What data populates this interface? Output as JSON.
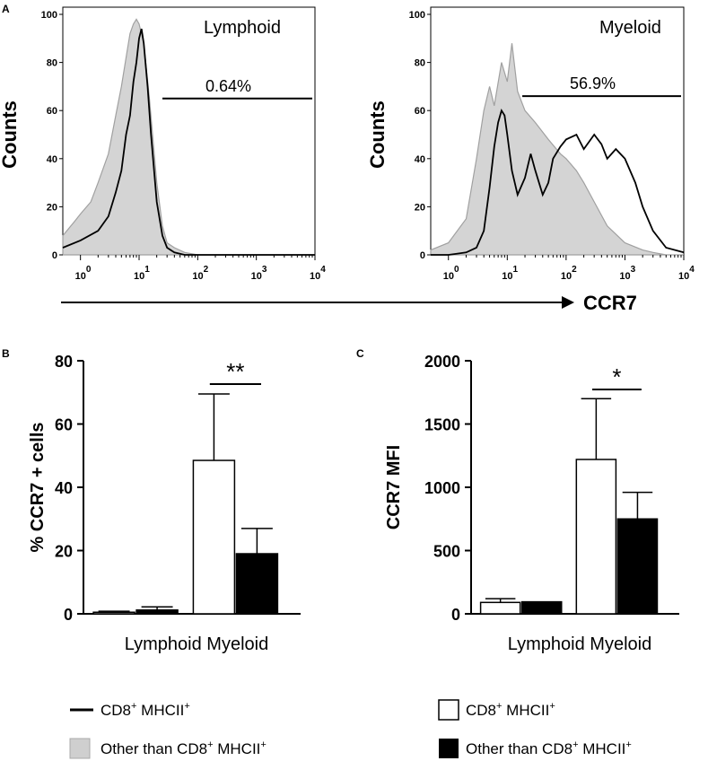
{
  "panel_labels": {
    "a": "A",
    "b": "B",
    "c": "C"
  },
  "axis_arrow_label": "CCR7",
  "chart_data": [
    {
      "type": "line",
      "id": "lymphoid-histogram",
      "title": "Lymphoid",
      "ylabel": "Counts",
      "xscale": "log",
      "xlim": [
        0.5,
        10000
      ],
      "ylim": [
        0,
        100
      ],
      "y_ticks": [
        "0",
        "20",
        "40",
        "60",
        "80",
        "100"
      ],
      "x_ticks": [
        {
          "base": "10",
          "exp": "0"
        },
        {
          "base": "10",
          "exp": "1"
        },
        {
          "base": "10",
          "exp": "2"
        },
        {
          "base": "10",
          "exp": "3"
        },
        {
          "base": "10",
          "exp": "4"
        }
      ],
      "gate_label": "0.64%",
      "gate_range": [
        25,
        9000
      ],
      "gate_y": 65,
      "series": [
        {
          "name": "Other than CD8+ MHCII+",
          "style": "filled-gray",
          "x": [
            0.5,
            0.8,
            1,
            1.5,
            2,
            3,
            4,
            5,
            6,
            7,
            8,
            9,
            10,
            12,
            15,
            20,
            25,
            30,
            40,
            60,
            100,
            10000
          ],
          "y": [
            8,
            14,
            17,
            22,
            30,
            42,
            58,
            70,
            82,
            92,
            96,
            98,
            96,
            88,
            65,
            30,
            12,
            5,
            3,
            1,
            0,
            0
          ]
        },
        {
          "name": "CD8+ MHCII+",
          "style": "line-black",
          "x": [
            0.5,
            1,
            2,
            3,
            4,
            5,
            6,
            7,
            8,
            9,
            10,
            11,
            12,
            14,
            16,
            20,
            25,
            30,
            40,
            60,
            10000
          ],
          "y": [
            3,
            6,
            10,
            16,
            26,
            35,
            50,
            58,
            72,
            80,
            90,
            94,
            88,
            70,
            50,
            22,
            8,
            3,
            1,
            0,
            0
          ]
        }
      ]
    },
    {
      "type": "line",
      "id": "myeloid-histogram",
      "title": "Myeloid",
      "ylabel": "Counts",
      "xscale": "log",
      "xlim": [
        0.5,
        10000
      ],
      "ylim": [
        0,
        100
      ],
      "y_ticks": [
        "0",
        "20",
        "40",
        "60",
        "80",
        "100"
      ],
      "x_ticks": [
        {
          "base": "10",
          "exp": "0"
        },
        {
          "base": "10",
          "exp": "1"
        },
        {
          "base": "10",
          "exp": "2"
        },
        {
          "base": "10",
          "exp": "3"
        },
        {
          "base": "10",
          "exp": "4"
        }
      ],
      "gate_label": "56.9%",
      "gate_range": [
        18,
        9000
      ],
      "gate_y": 66,
      "series": [
        {
          "name": "Other than CD8+ MHCII+",
          "style": "filled-gray",
          "x": [
            0.5,
            1,
            2,
            3,
            4,
            5,
            6,
            8,
            10,
            12,
            15,
            20,
            30,
            50,
            80,
            100,
            150,
            200,
            300,
            500,
            1000,
            2000,
            3000,
            5000,
            10000
          ],
          "y": [
            2,
            5,
            15,
            40,
            60,
            70,
            62,
            80,
            72,
            88,
            68,
            60,
            55,
            48,
            42,
            40,
            35,
            30,
            22,
            12,
            5,
            2,
            1,
            0,
            0
          ]
        },
        {
          "name": "CD8+ MHCII+",
          "style": "line-black",
          "x": [
            0.5,
            1,
            2,
            3,
            4,
            5,
            6,
            7,
            8,
            9,
            10,
            12,
            15,
            20,
            25,
            30,
            40,
            50,
            60,
            80,
            100,
            150,
            200,
            300,
            400,
            500,
            700,
            1000,
            1500,
            2000,
            3000,
            5000,
            10000
          ],
          "y": [
            0,
            0,
            1,
            3,
            10,
            28,
            45,
            55,
            60,
            58,
            50,
            35,
            25,
            32,
            42,
            35,
            25,
            30,
            40,
            45,
            48,
            50,
            44,
            50,
            46,
            40,
            44,
            40,
            30,
            20,
            10,
            3,
            1
          ]
        }
      ]
    },
    {
      "type": "bar",
      "id": "ccr7-percent",
      "ylabel": "% CCR7 + cells",
      "categories": [
        "Lymphoid",
        "Myeloid"
      ],
      "category_label": "Lymphoid Myeloid",
      "ylim": [
        0,
        80
      ],
      "y_ticks": [
        "0",
        "20",
        "40",
        "60",
        "80"
      ],
      "series": [
        {
          "name": "CD8+ MHCII+",
          "style": "white",
          "values": [
            0.5,
            48.5
          ],
          "errors": [
            0.3,
            21
          ]
        },
        {
          "name": "Other than CD8+ MHCII+",
          "style": "black",
          "values": [
            1.2,
            19
          ],
          "errors": [
            1,
            8
          ]
        }
      ],
      "significance": "**"
    },
    {
      "type": "bar",
      "id": "ccr7-mfi",
      "ylabel": "CCR7 MFI",
      "categories": [
        "Lymphoid",
        "Myeloid"
      ],
      "category_label": "Lymphoid Myeloid",
      "ylim": [
        0,
        2000
      ],
      "y_ticks": [
        "0",
        "500",
        "1000",
        "1500",
        "2000"
      ],
      "series": [
        {
          "name": "CD8+ MHCII+",
          "style": "white",
          "values": [
            90,
            1220
          ],
          "errors": [
            30,
            480
          ]
        },
        {
          "name": "Other than CD8+ MHCII+",
          "style": "black",
          "values": [
            95,
            750
          ],
          "errors": [
            0,
            210
          ]
        }
      ],
      "significance": "*"
    }
  ],
  "legend": {
    "left": [
      {
        "symbol": "line",
        "text": "CD8",
        "sup1": "+",
        "mid": " MHCII",
        "sup2": "+"
      },
      {
        "symbol": "gray-box",
        "text": "Other than CD8",
        "sup1": "+",
        "mid": " MHCII",
        "sup2": "+"
      }
    ],
    "right": [
      {
        "symbol": "white-box",
        "text": "CD8",
        "sup1": "+",
        "mid": " MHCII",
        "sup2": "+"
      },
      {
        "symbol": "black-box",
        "text": "Other than CD8",
        "sup1": "+",
        "mid": " MHCII",
        "sup2": "+"
      }
    ]
  }
}
